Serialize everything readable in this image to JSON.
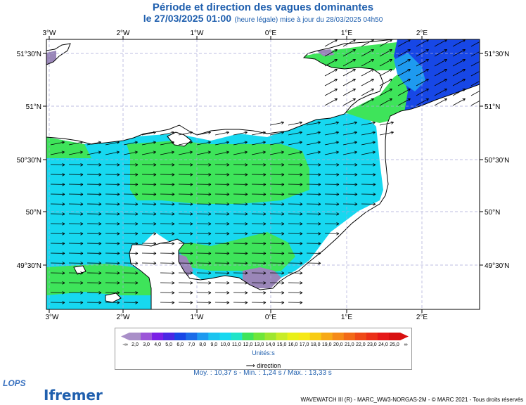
{
  "header": {
    "title": "Période et direction des vagues dominantes",
    "date_line": "le 27/03/2025 01:00",
    "note": "(heure légale) mise à jour du 28/03/2025 04h50"
  },
  "map": {
    "lon_labels": [
      "3°W",
      "2°W",
      "1°W",
      "0°E",
      "1°E",
      "2°E"
    ],
    "lat_labels": [
      "51°30'N",
      "51°N",
      "50°30'N",
      "50°N",
      "49°30'N"
    ],
    "colors": {
      "land": "#ffffff",
      "coast": "#000000",
      "green": "#3ee45a",
      "cyan": "#17d8f0",
      "blue_light": "#1e9af0",
      "blue_dark": "#1747e6",
      "grey_purple": "#9a86b8"
    }
  },
  "legend": {
    "labels": [
      "-∞",
      "2,0",
      "3,0",
      "4,0",
      "5,0",
      "6,0",
      "7,0",
      "8,0",
      "9,0",
      "10,0",
      "11,0",
      "12,0",
      "13,0",
      "14,0",
      "15,0",
      "16,0",
      "17,0",
      "18,0",
      "19,0",
      "20,0",
      "21,0",
      "22,0",
      "23,0",
      "24,0",
      "25,0",
      "∞"
    ],
    "colors": [
      "#a98fc8",
      "#9b55d8",
      "#7a1fe6",
      "#4a28e4",
      "#1747e6",
      "#1b6ce8",
      "#1e9af0",
      "#1bc4f0",
      "#17d8f0",
      "#20e4c8",
      "#3ee45a",
      "#6fe63a",
      "#9ee630",
      "#c8ec28",
      "#e9f018",
      "#f6e816",
      "#f8cc14",
      "#f7a916",
      "#f58a18",
      "#f26a18",
      "#ef4a18",
      "#eb3018",
      "#e51818",
      "#d81010"
    ],
    "units": "Unités:s",
    "direction": "direction"
  },
  "stats": {
    "moy": "Moy. : 10,37 s",
    "min": "Min. : 1,24 s",
    "max": "Max. : 13,33 s",
    "sep1": "-",
    "sep2": "/"
  },
  "footer": {
    "lops": "LOPS",
    "ifremer": "Ifremer",
    "credit": "WAVEWATCH III (R) - MARC_WW3-NORGAS-2M - © MARC 2021 - Tous droits réservés"
  }
}
